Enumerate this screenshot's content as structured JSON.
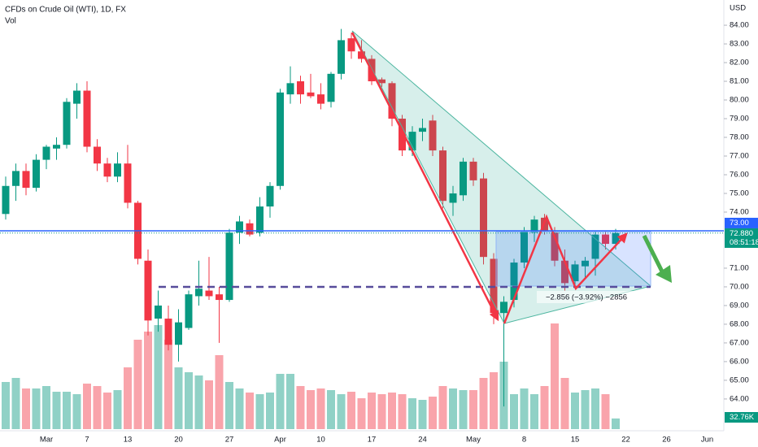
{
  "chart_data": {
    "type": "candlestick",
    "title": "CFDs on Crude Oil (WTI), 1D, FX",
    "volume_title": "Vol",
    "currency": "USD",
    "categories": [
      null,
      null,
      null,
      null,
      "Mar",
      null,
      null,
      null,
      "7",
      null,
      null,
      null,
      "13",
      null,
      null,
      null,
      null,
      "20",
      null,
      null,
      null,
      null,
      "27",
      null,
      null,
      null,
      null,
      "Apr",
      null,
      null,
      null,
      "10",
      null,
      null,
      null,
      null,
      "17",
      null,
      null,
      null,
      null,
      "24",
      null,
      null,
      null,
      null,
      "May",
      null,
      null,
      null,
      null,
      "8",
      null,
      null,
      null,
      null,
      "15",
      null,
      null,
      null,
      null,
      "22",
      null,
      null,
      null,
      "26",
      null,
      null,
      null,
      "Jun"
    ],
    "open": [
      73.9,
      75.4,
      76.2,
      75.3,
      76.8,
      77.4,
      77.6,
      79.8,
      80.5,
      77.5,
      76.6,
      75.9,
      76.6,
      74.5,
      71.4,
      68.3,
      68.3,
      66.9,
      67.8,
      69.5,
      69.8,
      69.6,
      69.3,
      72.9,
      73.4,
      72.9,
      74.3,
      75.4,
      80.3,
      81.0,
      80.4,
      80.3,
      79.9,
      81.4,
      83.3,
      82.6,
      82.2,
      81.1,
      80.9,
      79.0,
      77.3,
      78.3,
      78.9,
      77.3,
      74.5,
      74.9,
      76.7,
      75.8,
      71.5,
      68.6,
      69.3,
      71.3,
      72.9,
      73.7,
      72.9,
      71.4,
      70.3,
      71.1,
      71.5,
      72.8,
      72.3,
      null,
      null,
      null,
      null,
      null,
      null,
      null,
      null,
      null
    ],
    "high": [
      75.9,
      76.6,
      76.6,
      77.1,
      77.6,
      78.0,
      80.1,
      80.9,
      81.0,
      77.9,
      76.9,
      77.2,
      77.6,
      74.6,
      72.0,
      69.8,
      69.0,
      68.8,
      69.8,
      71.4,
      71.6,
      70.0,
      73.1,
      73.8,
      73.6,
      74.8,
      75.6,
      80.6,
      81.8,
      81.3,
      81.4,
      80.9,
      81.5,
      83.8,
      83.6,
      83.2,
      82.4,
      81.2,
      81.0,
      79.2,
      78.6,
      79.0,
      79.2,
      77.5,
      75.4,
      76.9,
      76.9,
      76.1,
      71.8,
      69.5,
      71.5,
      73.2,
      73.8,
      73.9,
      73.2,
      72.0,
      71.4,
      71.6,
      73.0,
      73.0,
      73.1,
      null,
      null,
      null,
      null,
      null,
      null,
      null,
      null,
      null
    ],
    "low": [
      73.6,
      74.6,
      74.9,
      75.1,
      76.3,
      76.8,
      77.4,
      79.0,
      77.2,
      76.2,
      75.6,
      75.6,
      74.2,
      71.2,
      67.4,
      67.6,
      66.6,
      66.0,
      67.7,
      69.0,
      69.3,
      67.0,
      69.2,
      72.3,
      72.7,
      72.7,
      73.7,
      75.2,
      79.8,
      79.8,
      80.1,
      79.5,
      79.6,
      81.1,
      82.2,
      82.0,
      80.8,
      80.7,
      78.6,
      77.0,
      77.0,
      77.8,
      77.0,
      74.2,
      73.8,
      74.6,
      75.4,
      71.2,
      68.0,
      63.6,
      68.9,
      71.0,
      72.4,
      72.8,
      71.1,
      69.8,
      69.9,
      70.4,
      70.6,
      72.0,
      72.0,
      null,
      null,
      null,
      null,
      null,
      null,
      null,
      null,
      null
    ],
    "close": [
      75.4,
      76.2,
      75.3,
      76.8,
      77.5,
      77.6,
      79.9,
      80.5,
      77.5,
      76.6,
      75.9,
      76.6,
      74.5,
      71.5,
      68.2,
      69.0,
      66.9,
      68.1,
      69.6,
      69.9,
      69.5,
      69.3,
      72.9,
      73.5,
      72.8,
      74.3,
      75.4,
      80.4,
      80.9,
      80.3,
      80.2,
      79.8,
      81.4,
      83.2,
      82.6,
      82.2,
      81.0,
      80.9,
      79.0,
      77.3,
      78.3,
      78.5,
      77.3,
      74.6,
      75.0,
      76.7,
      75.7,
      71.6,
      68.6,
      69.2,
      71.3,
      73.0,
      73.6,
      73.0,
      71.4,
      70.2,
      71.2,
      71.4,
      72.8,
      72.3,
      72.88,
      null,
      null,
      null,
      null,
      null,
      null,
      null,
      null,
      null
    ],
    "volume": [
      145000,
      157500,
      125000,
      125000,
      132500,
      115000,
      115000,
      107500,
      140000,
      132500,
      112500,
      120000,
      190000,
      275000,
      300000,
      320000,
      275000,
      190000,
      175000,
      165000,
      150000,
      227500,
      145000,
      125000,
      112500,
      107500,
      112500,
      170000,
      170000,
      132500,
      120000,
      125000,
      120000,
      107500,
      115000,
      95000,
      112500,
      107500,
      112500,
      107500,
      95000,
      90000,
      100000,
      132500,
      125000,
      120000,
      120000,
      157500,
      175000,
      207500,
      107500,
      125000,
      107500,
      132500,
      325000,
      157500,
      112500,
      120000,
      125000,
      107500,
      32760,
      null,
      null,
      null,
      null,
      null,
      null,
      null,
      null,
      null
    ],
    "volume_last_label": "32.76K",
    "volume_ylim": [
      0,
      400000
    ],
    "up_color": "#089981",
    "down_color": "#f23645",
    "ylim": [
      62.3,
      85.35
    ],
    "yticks": [
      {
        "value": 64,
        "label": "64.00"
      },
      {
        "value": 65,
        "label": "65.00"
      },
      {
        "value": 66,
        "label": "66.00"
      },
      {
        "value": 67,
        "label": "67.00"
      },
      {
        "value": 68,
        "label": "68.00"
      },
      {
        "value": 69,
        "label": "69.00"
      },
      {
        "value": 70,
        "label": "70.00"
      },
      {
        "value": 71,
        "label": "71.00"
      },
      {
        "value": 74,
        "label": "74.00"
      },
      {
        "value": 75,
        "label": "75.00"
      },
      {
        "value": 76,
        "label": "76.00"
      },
      {
        "value": 77,
        "label": "77.00"
      },
      {
        "value": 78,
        "label": "78.00"
      },
      {
        "value": 79,
        "label": "79.00"
      },
      {
        "value": 80,
        "label": "80.00"
      },
      {
        "value": 81,
        "label": "81.00"
      },
      {
        "value": 82,
        "label": "82.00"
      },
      {
        "value": 83,
        "label": "83.00"
      },
      {
        "value": 84,
        "label": "84.00"
      }
    ],
    "price_line": {
      "value": 73.0,
      "label": "73.00"
    },
    "last_price": {
      "value": 72.88,
      "label": "72.880"
    },
    "countdown": "08:51:18",
    "measure_label": "−2.856 (−3.92%) −2856"
  }
}
